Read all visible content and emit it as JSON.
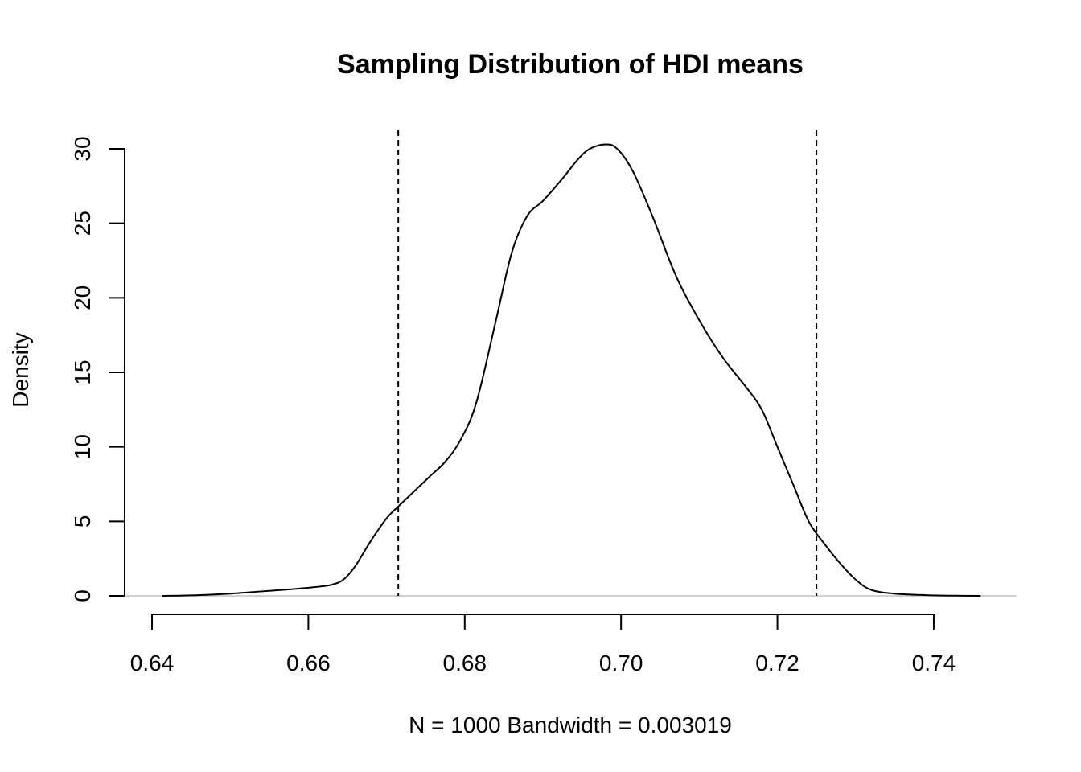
{
  "chart_data": {
    "type": "line",
    "title": "Sampling Distribution of HDI means",
    "xlabel": "N = 1000   Bandwidth = 0.003019",
    "ylabel": "Density",
    "xlim": [
      0.6365,
      0.7505
    ],
    "ylim": [
      0,
      31
    ],
    "x_ticks": [
      0.64,
      0.66,
      0.68,
      0.7,
      0.72,
      0.74
    ],
    "x_tick_labels": [
      "0.64",
      "0.66",
      "0.68",
      "0.70",
      "0.72",
      "0.74"
    ],
    "y_ticks": [
      0,
      5,
      10,
      15,
      20,
      25,
      30
    ],
    "y_tick_labels": [
      "0",
      "5",
      "10",
      "15",
      "20",
      "25",
      "30"
    ],
    "grid": false,
    "series": [
      {
        "x": [
          0.6413,
          0.646,
          0.65,
          0.654,
          0.658,
          0.661,
          0.663,
          0.6645,
          0.666,
          0.668,
          0.67,
          0.6715,
          0.6735,
          0.6755,
          0.6775,
          0.6795,
          0.6815,
          0.684,
          0.686,
          0.688,
          0.69,
          0.6925,
          0.6945,
          0.696,
          0.698,
          0.6995,
          0.7015,
          0.704,
          0.707,
          0.71,
          0.713,
          0.716,
          0.718,
          0.72,
          0.722,
          0.724,
          0.726,
          0.728,
          0.73,
          0.732,
          0.735,
          0.739,
          0.743,
          0.746
        ],
        "y": [
          0.0,
          0.05,
          0.15,
          0.3,
          0.45,
          0.6,
          0.75,
          1.1,
          2.0,
          3.7,
          5.2,
          6.0,
          7.0,
          8.0,
          9.0,
          10.5,
          13.0,
          18.5,
          23.0,
          25.5,
          26.5,
          28.0,
          29.3,
          30.0,
          30.3,
          30.0,
          28.5,
          25.5,
          21.5,
          18.5,
          16.0,
          14.0,
          12.5,
          10.0,
          7.5,
          5.0,
          3.5,
          2.2,
          1.1,
          0.4,
          0.15,
          0.05,
          0.01,
          0.0
        ]
      }
    ],
    "vlines": [
      0.6715,
      0.725
    ],
    "vline_style": "dashed",
    "baseline_y": 0,
    "baseline_color": "#c0c0c0",
    "line_color": "#000000"
  }
}
